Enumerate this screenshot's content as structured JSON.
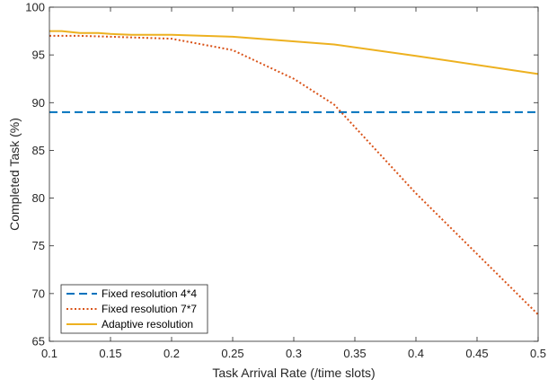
{
  "chart_data": {
    "type": "line",
    "xlabel": "Task Arrival Rate (/time slots)",
    "ylabel": "Completed Task (%)",
    "xlim": [
      0.1,
      0.5
    ],
    "ylim": [
      65,
      100
    ],
    "xticks": [
      "0.1",
      "0.15",
      "0.2",
      "0.25",
      "0.3",
      "0.35",
      "0.4",
      "0.45",
      "0.5"
    ],
    "yticks": [
      "65",
      "70",
      "75",
      "80",
      "85",
      "90",
      "95",
      "100"
    ],
    "grid": false,
    "legend_position": "bottom-left",
    "series": [
      {
        "name": "Fixed resolution 4*4",
        "color": "#0072BD",
        "style": "dashed",
        "x": [
          0.1,
          0.5
        ],
        "y": [
          89.0,
          89.0
        ]
      },
      {
        "name": "Fixed resolution 7*7",
        "color": "#D95319",
        "style": "dotted",
        "x": [
          0.1,
          0.125,
          0.15,
          0.175,
          0.2,
          0.25,
          0.3,
          0.333,
          0.4,
          0.5
        ],
        "y": [
          97.0,
          97.0,
          96.9,
          96.8,
          96.7,
          95.5,
          92.5,
          89.8,
          80.5,
          67.8
        ]
      },
      {
        "name": "Adaptive resolution",
        "color": "#EDB120",
        "style": "solid",
        "x": [
          0.1,
          0.11,
          0.125,
          0.14,
          0.15,
          0.167,
          0.2,
          0.25,
          0.333,
          0.4,
          0.5
        ],
        "y": [
          97.5,
          97.5,
          97.3,
          97.3,
          97.2,
          97.1,
          97.1,
          96.9,
          96.1,
          94.9,
          93.0
        ]
      }
    ]
  }
}
